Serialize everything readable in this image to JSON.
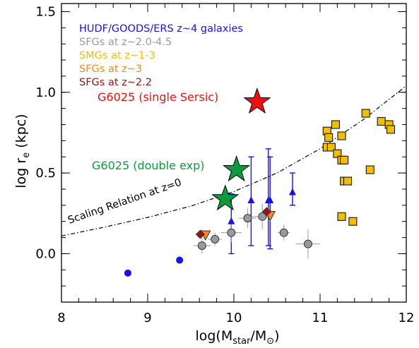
{
  "chart_data": {
    "type": "scatter",
    "xlim": [
      8,
      12
    ],
    "ylim": [
      -0.3,
      1.55
    ],
    "x_ticks": [
      "8",
      "9",
      "10",
      "11",
      "12"
    ],
    "y_ticks": [
      "0.0",
      "0.5",
      "1.0",
      "1.5"
    ],
    "xlabel": {
      "main": "log(M",
      "sub1": "star",
      "mid": "/M",
      "sun": "⊙",
      "end": ")"
    },
    "ylabel": {
      "main": "log r",
      "sub": "e",
      "end": " (kpc)"
    },
    "legend": [
      {
        "text": "HUDF/GOODS/ERS z~4 galaxies",
        "color": "#1a10e8"
      },
      {
        "text": "SFGs at z~2.0-4.5",
        "color": "#9a9a9a"
      },
      {
        "text": "SMGs at z~1-3",
        "color": "#f2be00"
      },
      {
        "text": "SFGs at z~3",
        "color": "#f08a1c"
      },
      {
        "text": "SFGs at z~2.2",
        "color": "#a01010"
      }
    ],
    "annotations": {
      "single": {
        "text": "G6025 (single Sersic)",
        "color": "#ee1010"
      },
      "double": {
        "text": "G6025 (double exp)",
        "color": "#0b9a3c"
      },
      "relation": {
        "text": "Scaling Relation at z=0",
        "color": "#000000"
      }
    },
    "series": [
      {
        "name": "HUDF/GOODS/ERS z~4 galaxies",
        "marker": "circle",
        "color": "#1a10e8",
        "points": [
          [
            8.77,
            -0.12
          ],
          [
            9.37,
            -0.04
          ]
        ]
      },
      {
        "name": "HUDF/GOODS/ERS z~4 galaxies",
        "marker": "triangle",
        "color": "#1a10e8",
        "points": [
          {
            "x": 9.97,
            "y": 0.2,
            "ylo": 0.0,
            "yhi": 0.37
          },
          {
            "x": 10.2,
            "y": 0.33,
            "ylo": 0.05,
            "yhi": 0.6
          },
          {
            "x": 10.4,
            "y": 0.33,
            "ylo": 0.05,
            "yhi": 0.65
          },
          {
            "x": 10.42,
            "y": 0.33,
            "ylo": 0.03,
            "yhi": 0.6
          },
          {
            "x": 10.68,
            "y": 0.38,
            "ylo": 0.3,
            "yhi": 0.5
          }
        ]
      },
      {
        "name": "SFGs at z~2.0-4.5",
        "marker": "circle",
        "color": "#9a9a9a",
        "points": [
          {
            "x": 9.63,
            "y": 0.05,
            "xerr": 0.1,
            "yerr": 0.05
          },
          {
            "x": 9.78,
            "y": 0.09,
            "xerr": 0.08,
            "yerr": 0.04
          },
          {
            "x": 9.97,
            "y": 0.13,
            "xerr": 0.12,
            "yerr": 0.06
          },
          {
            "x": 10.16,
            "y": 0.22,
            "xerr": 0.1,
            "yerr": 0.06
          },
          {
            "x": 10.33,
            "y": 0.23,
            "xerr": 0.12,
            "yerr": 0.08
          },
          {
            "x": 10.58,
            "y": 0.13,
            "xerr": 0.07,
            "yerr": 0.05
          },
          {
            "x": 10.86,
            "y": 0.06,
            "xerr": 0.14,
            "yerr": 0.09
          }
        ]
      },
      {
        "name": "SMGs at z~1-3",
        "marker": "square",
        "color": "#f2be00",
        "points": [
          [
            11.08,
            0.76
          ],
          [
            11.1,
            0.72
          ],
          [
            11.08,
            0.66
          ],
          [
            11.13,
            0.66
          ],
          [
            11.2,
            0.62
          ],
          [
            11.25,
            0.58
          ],
          [
            11.28,
            0.58
          ],
          [
            11.25,
            0.73
          ],
          [
            11.18,
            0.8
          ],
          [
            11.53,
            0.87
          ],
          [
            11.71,
            0.82
          ],
          [
            11.8,
            0.8
          ],
          [
            11.82,
            0.77
          ],
          [
            11.58,
            0.52
          ],
          [
            11.28,
            0.45
          ],
          [
            11.32,
            0.45
          ],
          [
            11.25,
            0.23
          ],
          [
            11.38,
            0.2
          ]
        ]
      },
      {
        "name": "SFGs at z~3",
        "marker": "triangle-down",
        "color": "#f08a1c",
        "points": [
          [
            9.67,
            0.12
          ],
          [
            10.42,
            0.24
          ]
        ]
      },
      {
        "name": "SFGs at z~2.2",
        "marker": "diamond",
        "color": "#a01010",
        "points": [
          [
            9.61,
            0.12
          ],
          [
            10.38,
            0.26
          ]
        ]
      },
      {
        "name": "G6025 (single Sersic)",
        "marker": "star",
        "color": "#ee1010",
        "points": [
          [
            10.27,
            0.94
          ]
        ]
      },
      {
        "name": "G6025 (double exp)",
        "marker": "star",
        "color": "#0b9a3c",
        "points": [
          [
            10.03,
            0.52
          ],
          [
            9.9,
            0.34
          ]
        ]
      }
    ],
    "relation_curve": {
      "name": "Scaling Relation at z=0",
      "x": [
        8.0,
        8.5,
        9.0,
        9.5,
        10.0,
        10.5,
        11.0,
        11.5,
        12.0
      ],
      "y": [
        0.11,
        0.165,
        0.225,
        0.295,
        0.385,
        0.5,
        0.65,
        0.83,
        1.04
      ]
    }
  }
}
